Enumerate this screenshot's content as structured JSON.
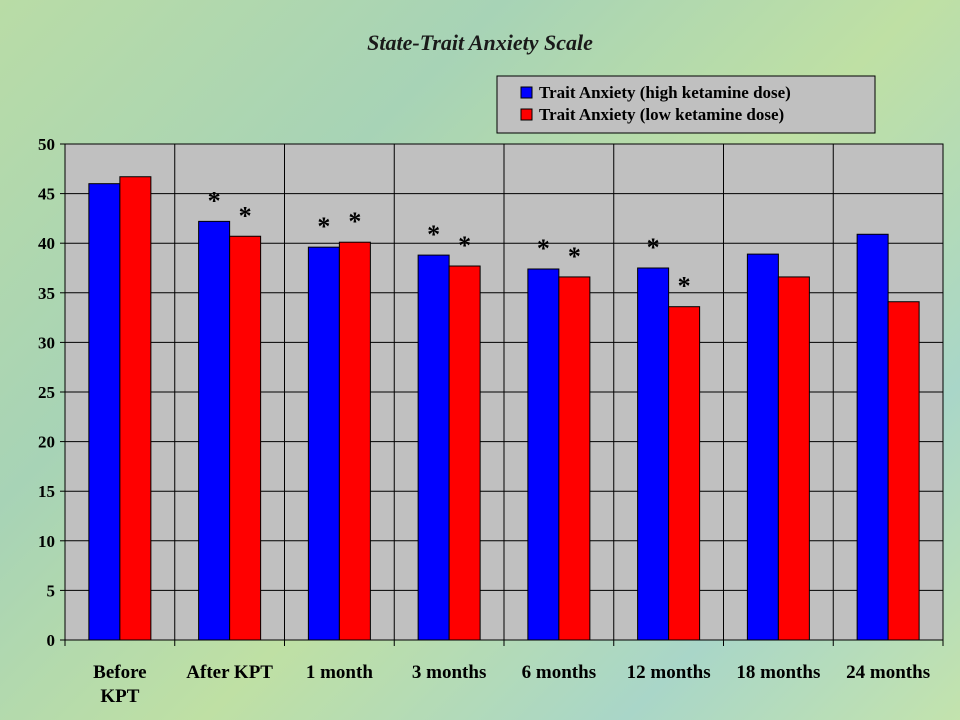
{
  "colors": {
    "series1": "#0000ff",
    "series2": "#ff0000",
    "plot_bg": "#c0c0c0",
    "legend_bg": "#c0c0c0"
  },
  "chart_data": {
    "type": "bar",
    "title": "State-Trait Anxiety Scale",
    "xlabel": "",
    "ylabel": "",
    "ylim": [
      0,
      50
    ],
    "yticks": [
      0,
      5,
      10,
      15,
      20,
      25,
      30,
      35,
      40,
      45,
      50
    ],
    "grid": true,
    "legend_position": "top-right",
    "categories": [
      "Before KPT",
      "After KPT",
      "1 month",
      "3 months",
      "6 months",
      "12 months",
      "18 months",
      "24 months"
    ],
    "category_lines": [
      [
        "Before",
        "KPT"
      ],
      [
        "After KPT"
      ],
      [
        "1 month"
      ],
      [
        "3 months"
      ],
      [
        "6 months"
      ],
      [
        "12 months"
      ],
      [
        "18 months"
      ],
      [
        "24 months"
      ]
    ],
    "series": [
      {
        "name": "Trait Anxiety (high ketamine dose)",
        "values": [
          46,
          42.2,
          39.6,
          38.8,
          37.4,
          37.5,
          38.9,
          40.9
        ],
        "marks": [
          "",
          "*",
          "*",
          "*",
          "*",
          "*",
          "",
          ""
        ]
      },
      {
        "name": "Trait Anxiety (low ketamine dose)",
        "values": [
          46.7,
          40.7,
          40.1,
          37.7,
          36.6,
          33.6,
          36.6,
          34.1
        ],
        "marks": [
          "",
          "*",
          "*",
          "*",
          "*",
          "*",
          "",
          ""
        ]
      }
    ]
  }
}
